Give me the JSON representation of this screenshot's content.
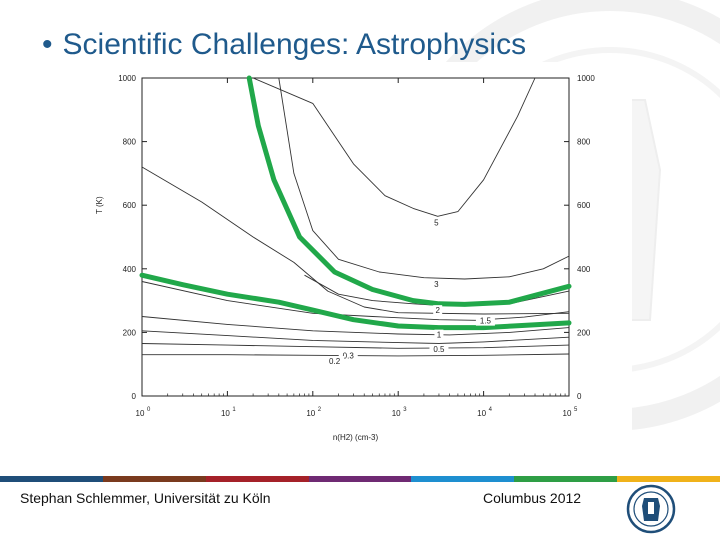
{
  "slide": {
    "bullet": "•",
    "title": "Scientific Challenges: Astrophysics"
  },
  "footer": {
    "left_text": "Stephan Schlemmer, Universität zu Köln",
    "right_text": "Columbus 2012",
    "color_bar": [
      "#1f4e79",
      "#7a3a1e",
      "#a52129",
      "#6f2a73",
      "#1e8fd0",
      "#2e9e45",
      "#f0b21a"
    ]
  },
  "logo": {
    "icon": "university-seal-icon"
  },
  "chart_data": {
    "type": "line",
    "title": "",
    "xlabel": "n(H2) (cm-3)",
    "ylabel": "T (K)",
    "xscale": "log",
    "x_ticks": [
      "10^0",
      "10^1",
      "10^2",
      "10^3",
      "10^4",
      "10^5"
    ],
    "y_ticks": [
      "0",
      "200",
      "400",
      "600",
      "800",
      "1000"
    ],
    "xlim": [
      1,
      100000
    ],
    "ylim": [
      0,
      1000
    ],
    "grid": false,
    "highlight_color": "#21a84a",
    "series": [
      {
        "name": "5",
        "style": "contour",
        "points": [
          [
            20,
            1000
          ],
          [
            100,
            920
          ],
          [
            300,
            730
          ],
          [
            700,
            630
          ],
          [
            1500,
            590
          ],
          [
            2900,
            565
          ],
          [
            5000,
            580
          ],
          [
            10000,
            680
          ],
          [
            25000,
            880
          ],
          [
            40000,
            1000
          ]
        ]
      },
      {
        "name": "3",
        "style": "contour",
        "points": [
          [
            40,
            1000
          ],
          [
            60,
            700
          ],
          [
            100,
            520
          ],
          [
            200,
            430
          ],
          [
            600,
            390
          ],
          [
            2000,
            372
          ],
          [
            6000,
            368
          ],
          [
            20000,
            375
          ],
          [
            50000,
            400
          ],
          [
            100000,
            440
          ]
        ]
      },
      {
        "name": "2",
        "style": "contour",
        "points": [
          [
            80,
            380
          ],
          [
            200,
            320
          ],
          [
            500,
            300
          ],
          [
            1500,
            290
          ],
          [
            3000,
            285
          ],
          [
            6000,
            283
          ],
          [
            20000,
            290
          ],
          [
            100000,
            330
          ]
        ]
      },
      {
        "name": "1.5",
        "style": "contour",
        "points": [
          [
            1,
            360
          ],
          [
            10,
            300
          ],
          [
            100,
            260
          ],
          [
            500,
            250
          ],
          [
            3000,
            240
          ],
          [
            8000,
            238
          ],
          [
            30000,
            248
          ],
          [
            100000,
            265
          ]
        ]
      },
      {
        "name": "1",
        "style": "contour",
        "points": [
          [
            1,
            250
          ],
          [
            10,
            225
          ],
          [
            100,
            205
          ],
          [
            1000,
            195
          ],
          [
            4000,
            192
          ],
          [
            20000,
            200
          ],
          [
            100000,
            215
          ]
        ]
      },
      {
        "name": "0.5",
        "style": "contour",
        "points": [
          [
            1,
            205
          ],
          [
            10,
            190
          ],
          [
            100,
            175
          ],
          [
            1000,
            168
          ],
          [
            3000,
            165
          ],
          [
            10000,
            170
          ],
          [
            100000,
            185
          ]
        ]
      },
      {
        "name": "0.3",
        "style": "contour",
        "points": [
          [
            1,
            165
          ],
          [
            10,
            160
          ],
          [
            100,
            155
          ],
          [
            1000,
            150
          ],
          [
            10000,
            152
          ],
          [
            100000,
            160
          ]
        ]
      },
      {
        "name": "0.2",
        "style": "contour",
        "points": [
          [
            1,
            130
          ],
          [
            10,
            130
          ],
          [
            100,
            128
          ],
          [
            1000,
            126
          ],
          [
            10000,
            128
          ],
          [
            100000,
            132
          ]
        ]
      },
      {
        "name": "",
        "style": "diagonal",
        "points": [
          [
            1,
            720
          ],
          [
            5,
            610
          ],
          [
            20,
            500
          ],
          [
            60,
            420
          ],
          [
            150,
            330
          ],
          [
            400,
            280
          ],
          [
            1000,
            262
          ],
          [
            10000,
            258
          ],
          [
            100000,
            260
          ]
        ]
      },
      {
        "name": "",
        "style": "highlight",
        "points": [
          [
            18,
            1000
          ],
          [
            23,
            850
          ],
          [
            35,
            680
          ],
          [
            70,
            500
          ],
          [
            180,
            390
          ],
          [
            500,
            335
          ],
          [
            1500,
            300
          ],
          [
            3000,
            290
          ],
          [
            6000,
            288
          ],
          [
            20000,
            295
          ],
          [
            100000,
            345
          ]
        ]
      },
      {
        "name": "",
        "style": "highlight",
        "points": [
          [
            1,
            380
          ],
          [
            3,
            350
          ],
          [
            10,
            320
          ],
          [
            40,
            295
          ],
          [
            100,
            270
          ],
          [
            300,
            240
          ],
          [
            1000,
            220
          ],
          [
            3000,
            215
          ],
          [
            10000,
            215
          ],
          [
            30000,
            222
          ],
          [
            100000,
            230
          ]
        ]
      }
    ],
    "contour_labels": [
      {
        "text": "5",
        "x": 2800,
        "y": 545
      },
      {
        "text": "3",
        "x": 2800,
        "y": 352
      },
      {
        "text": "2",
        "x": 2900,
        "y": 270
      },
      {
        "text": "1.5",
        "x": 10500,
        "y": 237
      },
      {
        "text": "1",
        "x": 3000,
        "y": 193
      },
      {
        "text": "0.5",
        "x": 3000,
        "y": 148
      },
      {
        "text": "0.3",
        "x": 260,
        "y": 128
      },
      {
        "text": "0.2",
        "x": 180,
        "y": 110
      }
    ]
  }
}
